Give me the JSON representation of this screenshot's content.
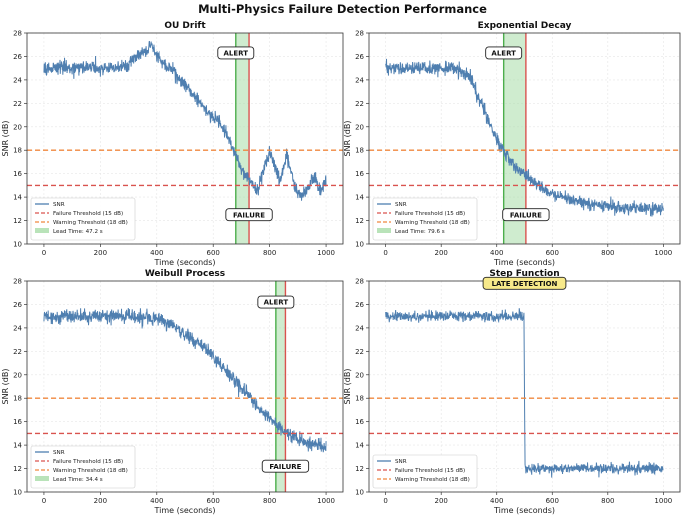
{
  "figure": {
    "title": "Multi-Physics Failure Detection Performance"
  },
  "colors": {
    "snr": "#4f7fb0",
    "failure_line": "#d9534f",
    "warning_line": "#f0883e",
    "alert_line": "#4cae4c",
    "lead_fill": "#a8dca8",
    "alert_box": "#ffffff",
    "late_box": "#f7e98a"
  },
  "chart_data": [
    {
      "type": "line",
      "title": "OU Drift",
      "xlabel": "Time (seconds)",
      "ylabel": "SNR (dB)",
      "xlim": [
        -60,
        1060
      ],
      "ylim": [
        10,
        28
      ],
      "xticks": [
        0,
        200,
        400,
        600,
        800,
        1000
      ],
      "yticks": [
        10,
        12,
        14,
        16,
        18,
        20,
        22,
        24,
        26,
        28
      ],
      "grid": true,
      "legend_position": "lower-left",
      "thresholds": {
        "failure": 15,
        "warning": 18
      },
      "lead_window": [
        680,
        727
      ],
      "alert_time": 680,
      "failure_time": 727,
      "series": [
        {
          "name": "SNR",
          "noise": 0.3,
          "x": [
            0,
            50,
            100,
            150,
            200,
            250,
            300,
            330,
            360,
            380,
            400,
            430,
            460,
            500,
            540,
            580,
            620,
            650,
            680,
            700,
            720,
            740,
            760,
            780,
            800,
            820,
            840,
            860,
            880,
            900,
            920,
            940,
            960,
            980,
            1000
          ],
          "values": [
            25,
            25.1,
            25,
            25.2,
            25,
            25,
            25.3,
            26,
            26.4,
            27,
            26,
            25.3,
            24.8,
            23.5,
            22.6,
            21.2,
            20.5,
            19.3,
            17.5,
            16.4,
            15.8,
            15,
            14.6,
            16.5,
            17.8,
            16.5,
            15.4,
            17.6,
            15.8,
            14,
            14.2,
            15,
            15.8,
            14.4,
            15.6
          ]
        }
      ],
      "legend": [
        "SNR",
        "Failure Threshold (15 dB)",
        "Warning Threshold (18 dB)",
        "Lead Time: 47.2 s"
      ],
      "annotations": [
        {
          "text": "ALERT",
          "x": 680,
          "y": 26.3,
          "style": "alert"
        },
        {
          "text": "FAILURE",
          "x": 727,
          "y": 12.5,
          "style": "alert"
        }
      ]
    },
    {
      "type": "line",
      "title": "Exponential Decay",
      "xlabel": "Time (seconds)",
      "ylabel": "SNR (dB)",
      "xlim": [
        -60,
        1060
      ],
      "ylim": [
        10,
        28
      ],
      "xticks": [
        0,
        200,
        400,
        600,
        800,
        1000
      ],
      "yticks": [
        10,
        12,
        14,
        16,
        18,
        20,
        22,
        24,
        26,
        28
      ],
      "grid": true,
      "legend_position": "lower-left",
      "thresholds": {
        "failure": 15,
        "warning": 18
      },
      "lead_window": [
        425,
        505
      ],
      "alert_time": 425,
      "failure_time": 505,
      "series": [
        {
          "name": "SNR",
          "noise": 0.28,
          "x": [
            0,
            100,
            200,
            250,
            300,
            330,
            360,
            390,
            420,
            450,
            480,
            510,
            550,
            600,
            650,
            700,
            750,
            800,
            850,
            900,
            950,
            1000
          ],
          "values": [
            25,
            25,
            25,
            25,
            24.4,
            22.8,
            21,
            19.4,
            18.2,
            17,
            16.3,
            15.7,
            15,
            14.3,
            13.9,
            13.6,
            13.4,
            13.2,
            13.1,
            13.1,
            13,
            13
          ]
        }
      ],
      "legend": [
        "SNR",
        "Failure Threshold (15 dB)",
        "Warning Threshold (18 dB)",
        "Lead Time: 79.6 s"
      ],
      "annotations": [
        {
          "text": "ALERT",
          "x": 425,
          "y": 26.3,
          "style": "alert"
        },
        {
          "text": "FAILURE",
          "x": 505,
          "y": 12.5,
          "style": "alert"
        }
      ]
    },
    {
      "type": "line",
      "title": "Weibull Process",
      "xlabel": "Time (seconds)",
      "ylabel": "SNR (dB)",
      "xlim": [
        -60,
        1060
      ],
      "ylim": [
        10,
        28
      ],
      "xticks": [
        0,
        200,
        400,
        600,
        800,
        1000
      ],
      "yticks": [
        10,
        12,
        14,
        16,
        18,
        20,
        22,
        24,
        26,
        28
      ],
      "grid": true,
      "legend_position": "lower-left",
      "thresholds": {
        "failure": 15,
        "warning": 18
      },
      "lead_window": [
        822,
        856
      ],
      "alert_time": 822,
      "failure_time": 856,
      "series": [
        {
          "name": "SNR",
          "noise": 0.3,
          "x": [
            0,
            100,
            200,
            300,
            400,
            450,
            500,
            550,
            600,
            650,
            700,
            750,
            800,
            850,
            900,
            950,
            1000
          ],
          "values": [
            25,
            25,
            25,
            25,
            24.8,
            24.2,
            23.5,
            22.6,
            21.5,
            20.2,
            18.9,
            17.5,
            16.2,
            15.2,
            14.5,
            14,
            13.8
          ]
        }
      ],
      "legend": [
        "SNR",
        "Failure Threshold (15 dB)",
        "Warning Threshold (18 dB)",
        "Lead Time: 34.4 s"
      ],
      "annotations": [
        {
          "text": "ALERT",
          "x": 822,
          "y": 26.2,
          "style": "alert"
        },
        {
          "text": "FAILURE",
          "x": 856,
          "y": 12.2,
          "style": "alert"
        }
      ]
    },
    {
      "type": "line",
      "title": "Step Function",
      "xlabel": "Time (seconds)",
      "ylabel": "SNR (dB)",
      "xlim": [
        -60,
        1060
      ],
      "ylim": [
        10,
        28
      ],
      "xticks": [
        0,
        200,
        400,
        600,
        800,
        1000
      ],
      "yticks": [
        10,
        12,
        14,
        16,
        18,
        20,
        22,
        24,
        26,
        28
      ],
      "grid": true,
      "legend_position": "lower-left",
      "thresholds": {
        "failure": 15,
        "warning": 18
      },
      "series": [
        {
          "name": "SNR",
          "noise": 0.22,
          "x": [
            0,
            250,
            498,
            502,
            750,
            1000
          ],
          "values": [
            25,
            25,
            25,
            12,
            12,
            12
          ]
        }
      ],
      "legend": [
        "SNR",
        "Failure Threshold (15 dB)",
        "Warning Threshold (18 dB)"
      ],
      "annotations": [
        {
          "text": "LATE DETECTION",
          "x": 500,
          "y": 27.8,
          "style": "late"
        }
      ]
    }
  ]
}
